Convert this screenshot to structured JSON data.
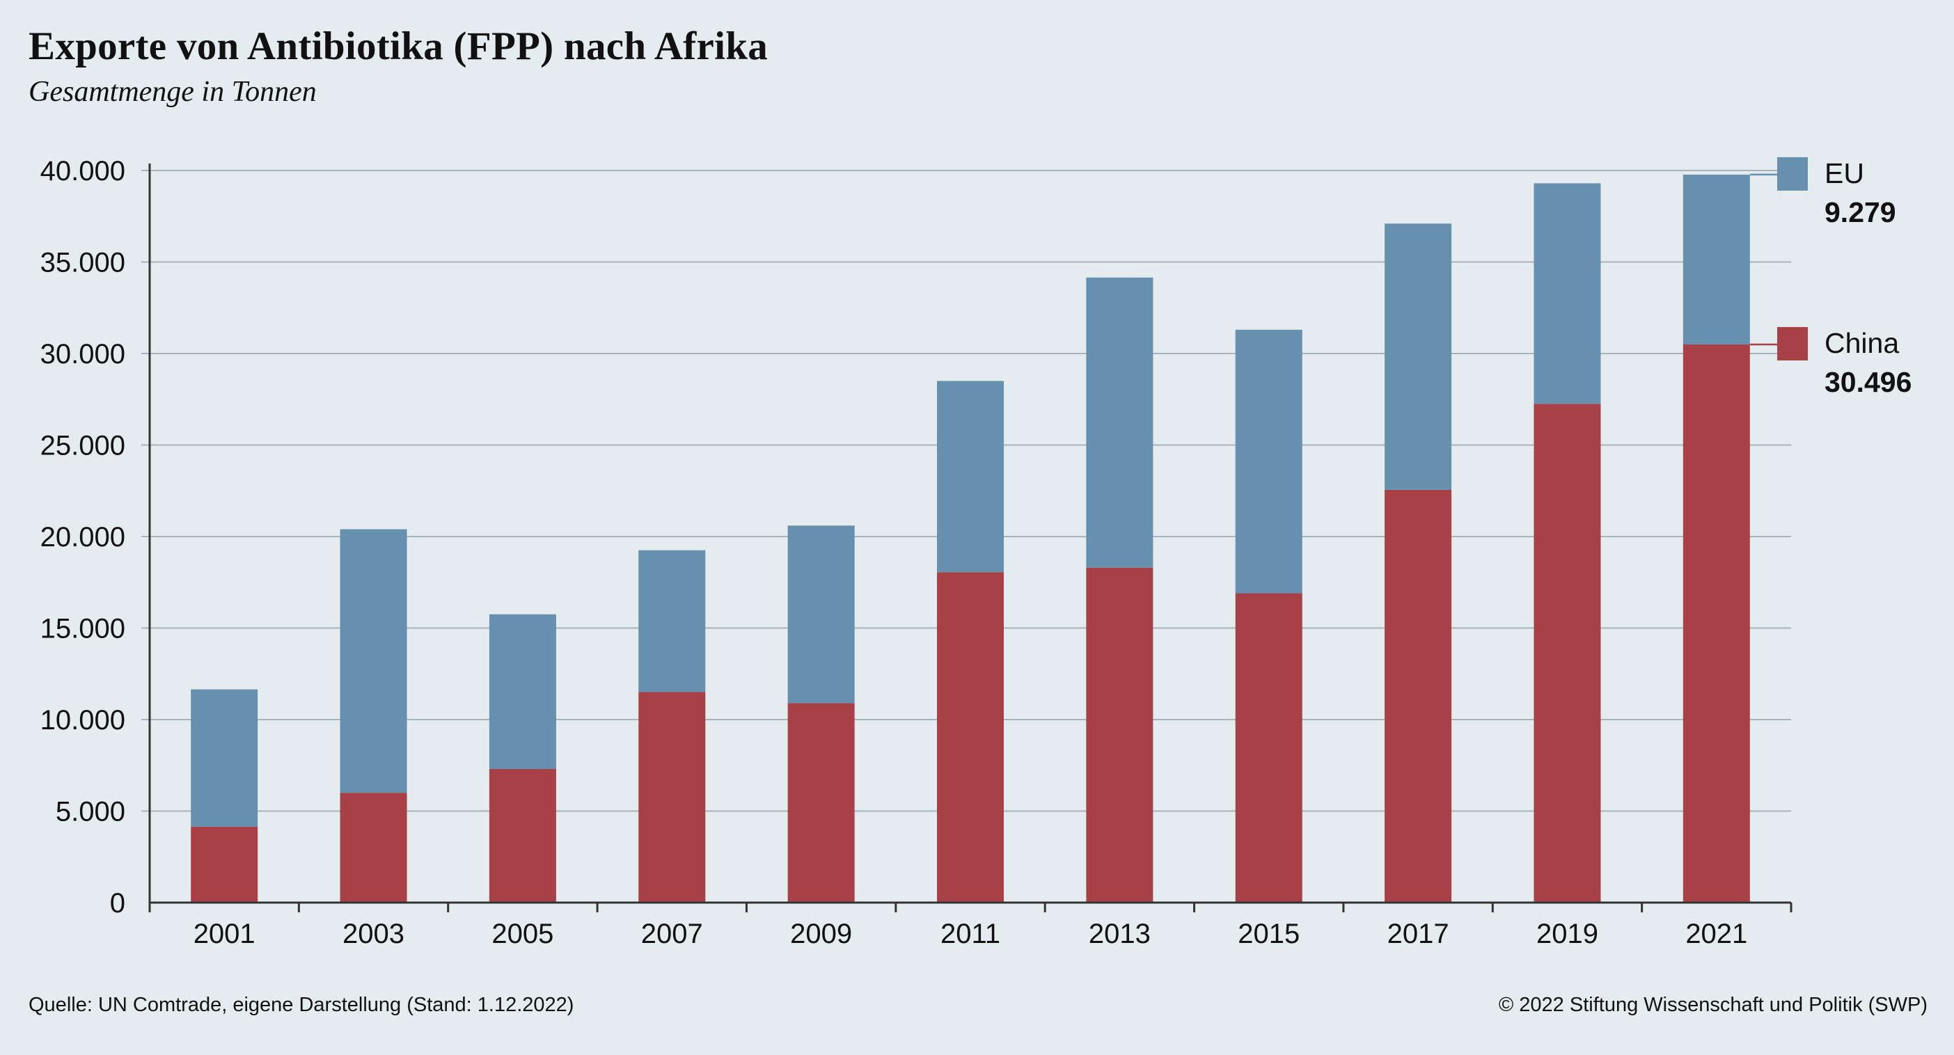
{
  "chart_data": {
    "type": "bar",
    "stacked": true,
    "title": "Exporte von Antibiotika (FPP) nach Afrika",
    "subtitle": "Gesamtmenge in Tonnen",
    "categories": [
      "2001",
      "2003",
      "2005",
      "2007",
      "2009",
      "2011",
      "2013",
      "2015",
      "2017",
      "2019",
      "2021"
    ],
    "series": [
      {
        "name": "China",
        "color": "#a84147",
        "values": [
          4150,
          6000,
          7300,
          11500,
          10900,
          18050,
          18300,
          16900,
          22550,
          27250,
          30496
        ],
        "end_label": "30.496"
      },
      {
        "name": "EU",
        "color": "#678fae",
        "values": [
          7500,
          14400,
          8450,
          7750,
          9700,
          10450,
          15850,
          14400,
          14550,
          12050,
          9279
        ],
        "end_label": "9.279"
      }
    ],
    "ylim": [
      0,
      40000
    ],
    "yticks": [
      "0",
      "5.000",
      "10.000",
      "15.000",
      "20.000",
      "25.000",
      "30.000",
      "35.000",
      "40.000"
    ],
    "grid": true,
    "legend": "right, at end of last bar"
  },
  "footer": {
    "source": "Quelle: UN Comtrade, eigene Darstellung (Stand: 1.12.2022)",
    "copyright": "© 2022 Stiftung Wissenschaft und Politik (SWP)"
  }
}
